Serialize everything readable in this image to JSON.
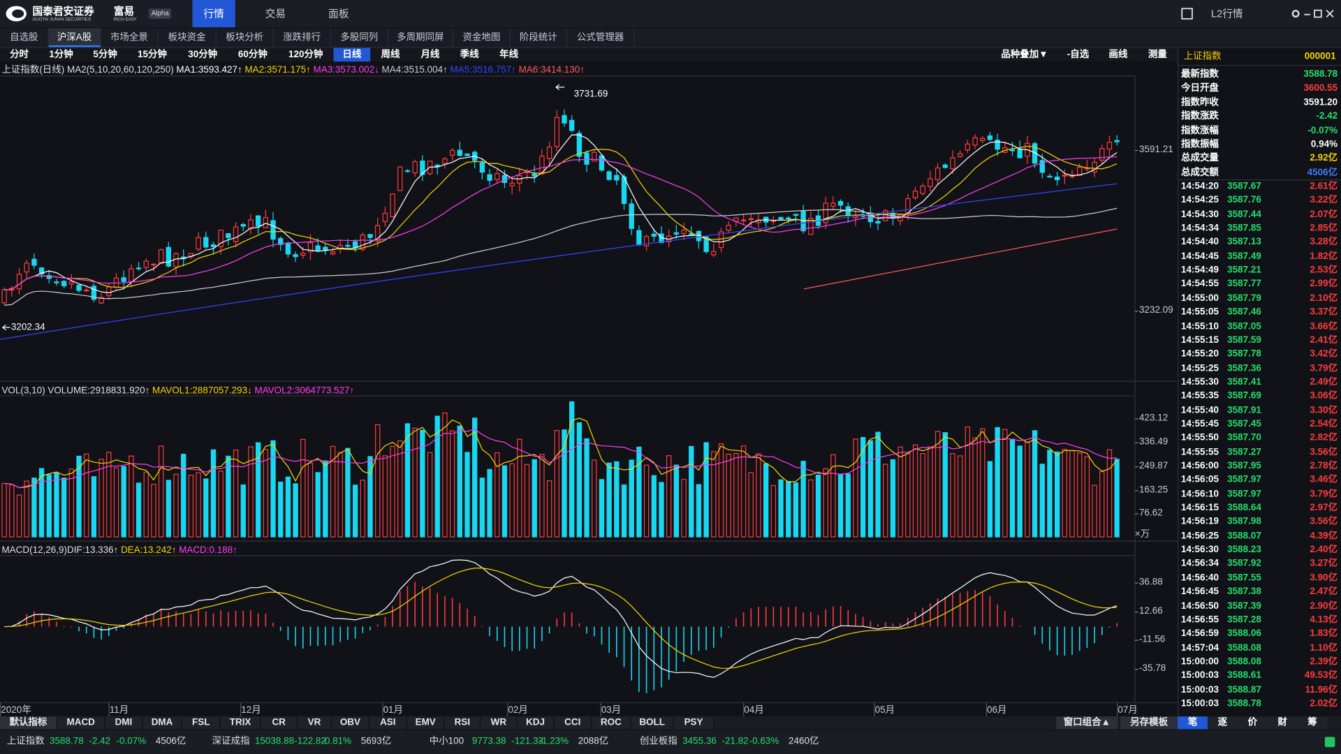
{
  "header": {
    "logo": "国泰君安证券",
    "logo_sub": "GUOTAI JUNAN SECURITIES",
    "brand": "富易",
    "brand_sub": "RICH EASY",
    "badge": "Alpha",
    "tabs": [
      "行情",
      "交易",
      "面板"
    ],
    "active_tab": 0,
    "right_label": "L2行情"
  },
  "nav": {
    "items": [
      "自选股",
      "沪深A股",
      "市场全景",
      "板块资金",
      "板块分析",
      "涨跌排行",
      "多股同列",
      "多周期同屏",
      "资金地图",
      "阶段统计",
      "公式管理器"
    ],
    "active": 1
  },
  "periods": {
    "items": [
      "分时",
      "1分钟",
      "5分钟",
      "15分钟",
      "30分钟",
      "60分钟",
      "120分钟",
      "日线",
      "周线",
      "月线",
      "季线",
      "年线"
    ],
    "active": 7,
    "tools": [
      "品种叠加▼",
      "-自选",
      "画线",
      "测量"
    ]
  },
  "price_panel": {
    "label": "上证指数(日线) MA2(5,10,20,60,120,250)",
    "items": [
      {
        "text": "MA1:3593.427↑",
        "color": "#ffffff"
      },
      {
        "text": "MA2:3571.175↑",
        "color": "#f5d400"
      },
      {
        "text": "MA3:3573.002↓",
        "color": "#ff3df0"
      },
      {
        "text": "MA4:3515.004↑",
        "color": "#cfcfcf"
      },
      {
        "text": "MA5:3516.757↑",
        "color": "#3346ff"
      },
      {
        "text": "MA6:3414.130↑",
        "color": "#ff5a5a"
      }
    ],
    "axis": [
      "3591.21",
      "3232.09"
    ],
    "high": "3731.69",
    "low": "3202.34"
  },
  "volume_panel": {
    "label": "VOL(3,10) VOLUME:2918831.920↑",
    "items": [
      {
        "text": "MAVOL1:2887057.293↓",
        "color": "#f5d400"
      },
      {
        "text": "MAVOL2:3064773.527↑",
        "color": "#ff3df0"
      }
    ],
    "axis": [
      "423.12",
      "336.49",
      "249.87",
      "163.25",
      "76.62"
    ],
    "unit": "×万"
  },
  "macd_panel": {
    "label": "MACD(12,26,9)DIF:13.336↑",
    "items": [
      {
        "text": "DEA:13.242↑",
        "color": "#f5d400"
      },
      {
        "text": "MACD:0.188↑",
        "color": "#ff3df0"
      }
    ],
    "axis": [
      "36.88",
      "12.66",
      "-11.56",
      "-35.78"
    ]
  },
  "dates": [
    "2020年",
    "11月",
    "12月",
    "01月",
    "02月",
    "03月",
    "04月",
    "05月",
    "06月",
    "07月"
  ],
  "indicator_tabs": {
    "items": [
      "默认指标",
      "MACD",
      "DMI",
      "DMA",
      "FSL",
      "TRIX",
      "CR",
      "VR",
      "OBV",
      "ASI",
      "EMV",
      "RSI",
      "WR",
      "KDJ",
      "CCI",
      "ROC",
      "BOLL",
      "PSY"
    ],
    "right": [
      "窗口组合▲",
      "另存模板"
    ]
  },
  "side_panel": {
    "name": "上证指数",
    "code": "000001",
    "quote": [
      {
        "label": "最新指数",
        "value": "3588.78",
        "color": "#22e06b"
      },
      {
        "label": "今日开盘",
        "value": "3600.55",
        "color": "#ff3b3b"
      },
      {
        "label": "指数昨收",
        "value": "3591.20",
        "color": "#ffffff"
      },
      {
        "label": "指数涨跌",
        "value": "-2.42",
        "color": "#22e06b"
      },
      {
        "label": "指数涨幅",
        "value": "-0.07%",
        "color": "#22e06b"
      },
      {
        "label": "指数振幅",
        "value": "0.94%",
        "color": "#ffffff"
      },
      {
        "label": "总成交量",
        "value": "2.92亿",
        "color": "#f5d400"
      },
      {
        "label": "总成交额",
        "value": "4506亿",
        "color": "#3d7bff"
      }
    ],
    "ticks": [
      [
        "14:54:20",
        "3587.67",
        "2.61亿"
      ],
      [
        "14:54:25",
        "3587.76",
        "3.22亿"
      ],
      [
        "14:54:30",
        "3587.44",
        "2.07亿"
      ],
      [
        "14:54:34",
        "3587.85",
        "2.85亿"
      ],
      [
        "14:54:40",
        "3587.13",
        "3.28亿"
      ],
      [
        "14:54:45",
        "3587.49",
        "1.82亿"
      ],
      [
        "14:54:49",
        "3587.21",
        "2.53亿"
      ],
      [
        "14:54:55",
        "3587.77",
        "2.99亿"
      ],
      [
        "14:55:00",
        "3587.79",
        "2.10亿"
      ],
      [
        "14:55:05",
        "3587.46",
        "3.37亿"
      ],
      [
        "14:55:10",
        "3587.05",
        "3.66亿"
      ],
      [
        "14:55:15",
        "3587.59",
        "2.41亿"
      ],
      [
        "14:55:20",
        "3587.78",
        "3.42亿"
      ],
      [
        "14:55:25",
        "3587.36",
        "3.79亿"
      ],
      [
        "14:55:30",
        "3587.41",
        "2.49亿"
      ],
      [
        "14:55:35",
        "3587.69",
        "3.06亿"
      ],
      [
        "14:55:40",
        "3587.91",
        "3.30亿"
      ],
      [
        "14:55:45",
        "3587.45",
        "2.54亿"
      ],
      [
        "14:55:50",
        "3587.70",
        "2.82亿"
      ],
      [
        "14:55:55",
        "3587.27",
        "3.56亿"
      ],
      [
        "14:56:00",
        "3587.95",
        "2.78亿"
      ],
      [
        "14:56:05",
        "3587.97",
        "3.46亿"
      ],
      [
        "14:56:10",
        "3587.97",
        "3.79亿"
      ],
      [
        "14:56:15",
        "3588.64",
        "2.97亿"
      ],
      [
        "14:56:19",
        "3587.98",
        "3.56亿"
      ],
      [
        "14:56:25",
        "3588.07",
        "4.39亿"
      ],
      [
        "14:56:30",
        "3588.23",
        "2.40亿"
      ],
      [
        "14:56:34",
        "3587.92",
        "3.27亿"
      ],
      [
        "14:56:40",
        "3587.55",
        "3.90亿"
      ],
      [
        "14:56:45",
        "3587.38",
        "2.47亿"
      ],
      [
        "14:56:50",
        "3587.39",
        "2.90亿"
      ],
      [
        "14:56:55",
        "3587.28",
        "4.13亿"
      ],
      [
        "14:56:59",
        "3588.06",
        "1.83亿"
      ],
      [
        "14:57:04",
        "3588.08",
        "1.10亿"
      ],
      [
        "15:00:00",
        "3588.08",
        "2.39亿"
      ],
      [
        "15:00:03",
        "3588.61",
        "49.53亿"
      ],
      [
        "15:00:03",
        "3588.87",
        "11.96亿"
      ],
      [
        "15:00:03",
        "3588.78",
        "2.02亿"
      ]
    ],
    "tabs": [
      "笔",
      "逐",
      "价",
      "财",
      "筹"
    ],
    "active_tab": 0
  },
  "status_bar": [
    {
      "name": "上证指数",
      "price": "3588.78",
      "change": "-2.42",
      "pct": "-0.07%",
      "amount": "4506亿"
    },
    {
      "name": "深证成指",
      "price": "15038.88",
      "change": "-122.82",
      "pct": "-0.81%",
      "amount": "5693亿"
    },
    {
      "name": "中小100",
      "price": "9773.38",
      "change": "-121.33",
      "pct": "-1.23%",
      "amount": "2088亿"
    },
    {
      "name": "创业板指",
      "price": "3455.36",
      "change": "-21.82",
      "pct": "-0.63%",
      "amount": "2460亿"
    }
  ]
}
